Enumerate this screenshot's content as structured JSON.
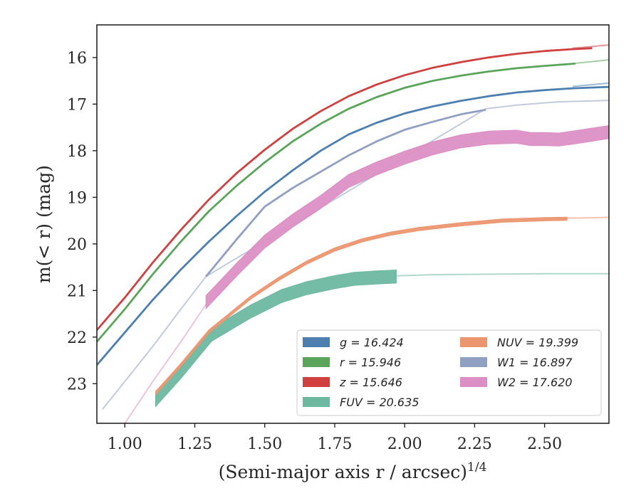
{
  "chart_data": {
    "type": "line",
    "xlabel": "(Semi-major axis r / arcsec)",
    "xlabel_sup": "1/4",
    "ylabel": "m(< r) (mag)",
    "xlim": [
      0.9,
      2.73
    ],
    "ylim": [
      23.85,
      15.3
    ],
    "y_inverted": true,
    "x_ticks": [
      "1.00",
      "1.25",
      "1.50",
      "1.75",
      "2.00",
      "2.25",
      "2.50"
    ],
    "y_ticks": [
      "16",
      "17",
      "18",
      "19",
      "20",
      "21",
      "22",
      "23"
    ],
    "grid": false,
    "legend_position": "lower-right",
    "legend_columns": 2,
    "series": [
      {
        "name": "g = 16.424",
        "color": "#4c7fb0",
        "band_width": 0.03,
        "measured": [
          [
            0.9,
            22.6
          ],
          [
            1.0,
            21.9
          ],
          [
            1.1,
            21.2
          ],
          [
            1.2,
            20.55
          ],
          [
            1.3,
            19.95
          ],
          [
            1.4,
            19.4
          ],
          [
            1.5,
            18.88
          ],
          [
            1.6,
            18.42
          ],
          [
            1.7,
            18.0
          ],
          [
            1.8,
            17.65
          ],
          [
            1.9,
            17.4
          ],
          [
            2.0,
            17.2
          ],
          [
            2.1,
            17.05
          ],
          [
            2.2,
            16.93
          ],
          [
            2.3,
            16.83
          ],
          [
            2.4,
            16.75
          ],
          [
            2.5,
            16.7
          ],
          [
            2.6,
            16.66
          ],
          [
            2.73,
            16.63
          ]
        ],
        "model": [
          [
            2.6,
            16.62
          ],
          [
            2.73,
            16.55
          ]
        ]
      },
      {
        "name": "r = 15.946",
        "color": "#5ba55a",
        "band_width": 0.03,
        "measured": [
          [
            0.9,
            22.1
          ],
          [
            1.0,
            21.4
          ],
          [
            1.1,
            20.65
          ],
          [
            1.2,
            19.95
          ],
          [
            1.3,
            19.3
          ],
          [
            1.4,
            18.75
          ],
          [
            1.5,
            18.25
          ],
          [
            1.6,
            17.8
          ],
          [
            1.7,
            17.42
          ],
          [
            1.8,
            17.1
          ],
          [
            1.9,
            16.85
          ],
          [
            2.0,
            16.65
          ],
          [
            2.1,
            16.5
          ],
          [
            2.2,
            16.39
          ],
          [
            2.3,
            16.3
          ],
          [
            2.4,
            16.23
          ],
          [
            2.5,
            16.18
          ],
          [
            2.61,
            16.13
          ]
        ],
        "model": [
          [
            2.6,
            16.13
          ],
          [
            2.73,
            16.05
          ]
        ]
      },
      {
        "name": "z = 15.646",
        "color": "#d0403f",
        "band_width": 0.03,
        "measured": [
          [
            0.9,
            21.85
          ],
          [
            1.0,
            21.15
          ],
          [
            1.1,
            20.4
          ],
          [
            1.2,
            19.7
          ],
          [
            1.3,
            19.05
          ],
          [
            1.4,
            18.48
          ],
          [
            1.5,
            17.98
          ],
          [
            1.6,
            17.53
          ],
          [
            1.7,
            17.15
          ],
          [
            1.8,
            16.83
          ],
          [
            1.9,
            16.58
          ],
          [
            2.0,
            16.38
          ],
          [
            2.1,
            16.22
          ],
          [
            2.2,
            16.1
          ],
          [
            2.3,
            16.0
          ],
          [
            2.4,
            15.92
          ],
          [
            2.5,
            15.86
          ],
          [
            2.6,
            15.82
          ],
          [
            2.67,
            15.8
          ]
        ],
        "model": [
          [
            2.6,
            15.8
          ],
          [
            2.73,
            15.73
          ]
        ]
      },
      {
        "name": "FUV = 20.635",
        "color": "#6db8a0",
        "band_width": 0.28,
        "measured": [
          [
            1.11,
            23.35
          ],
          [
            1.2,
            22.75
          ],
          [
            1.31,
            21.95
          ],
          [
            1.45,
            21.45
          ],
          [
            1.56,
            21.12
          ],
          [
            1.65,
            20.95
          ],
          [
            1.75,
            20.82
          ],
          [
            1.82,
            20.75
          ],
          [
            1.9,
            20.72
          ],
          [
            1.97,
            20.7
          ]
        ],
        "model": [
          [
            1.95,
            20.69
          ],
          [
            2.1,
            20.66
          ],
          [
            2.3,
            20.65
          ],
          [
            2.5,
            20.64
          ],
          [
            2.73,
            20.64
          ]
        ]
      },
      {
        "name": "NUV = 19.399",
        "color": "#ec9670",
        "band_width": 0.07,
        "measured": [
          [
            1.11,
            23.2
          ],
          [
            1.2,
            22.6
          ],
          [
            1.3,
            21.88
          ],
          [
            1.45,
            21.15
          ],
          [
            1.55,
            20.75
          ],
          [
            1.65,
            20.4
          ],
          [
            1.75,
            20.12
          ],
          [
            1.85,
            19.92
          ],
          [
            1.95,
            19.78
          ],
          [
            2.05,
            19.68
          ],
          [
            2.2,
            19.58
          ],
          [
            2.35,
            19.5
          ],
          [
            2.5,
            19.47
          ],
          [
            2.58,
            19.46
          ]
        ],
        "model": [
          [
            2.55,
            19.45
          ],
          [
            2.65,
            19.44
          ],
          [
            2.73,
            19.43
          ]
        ]
      },
      {
        "name": "W1 = 16.897",
        "color": "#8fa0c3",
        "band_width": 0.05,
        "measured": [
          [
            1.29,
            20.7
          ],
          [
            1.4,
            19.9
          ],
          [
            1.5,
            19.2
          ],
          [
            1.6,
            18.8
          ],
          [
            1.7,
            18.45
          ],
          [
            1.8,
            18.1
          ],
          [
            1.9,
            17.8
          ],
          [
            2.0,
            17.55
          ],
          [
            2.1,
            17.38
          ],
          [
            2.2,
            17.22
          ],
          [
            2.29,
            17.12
          ]
        ],
        "model": [
          [
            0.92,
            23.55
          ],
          [
            1.0,
            22.95
          ],
          [
            1.1,
            22.2
          ],
          [
            1.2,
            21.4
          ],
          [
            1.29,
            20.7
          ],
          [
            2.29,
            17.1
          ],
          [
            2.4,
            17.02
          ],
          [
            2.55,
            16.95
          ],
          [
            2.73,
            16.92
          ]
        ]
      },
      {
        "name": "W2 = 17.620",
        "color": "#dc8fc4",
        "band_width": 0.28,
        "measured": [
          [
            1.29,
            21.25
          ],
          [
            1.4,
            20.55
          ],
          [
            1.5,
            19.95
          ],
          [
            1.6,
            19.5
          ],
          [
            1.7,
            19.1
          ],
          [
            1.8,
            18.65
          ],
          [
            1.9,
            18.38
          ],
          [
            2.0,
            18.15
          ],
          [
            2.1,
            17.95
          ],
          [
            2.2,
            17.8
          ],
          [
            2.3,
            17.72
          ],
          [
            2.4,
            17.7
          ],
          [
            2.45,
            17.75
          ],
          [
            2.5,
            17.75
          ],
          [
            2.55,
            17.76
          ],
          [
            2.6,
            17.72
          ],
          [
            2.73,
            17.6
          ]
        ],
        "model": [
          [
            1.0,
            23.85
          ],
          [
            1.1,
            22.95
          ],
          [
            1.2,
            22.1
          ],
          [
            1.29,
            21.3
          ]
        ]
      }
    ]
  }
}
